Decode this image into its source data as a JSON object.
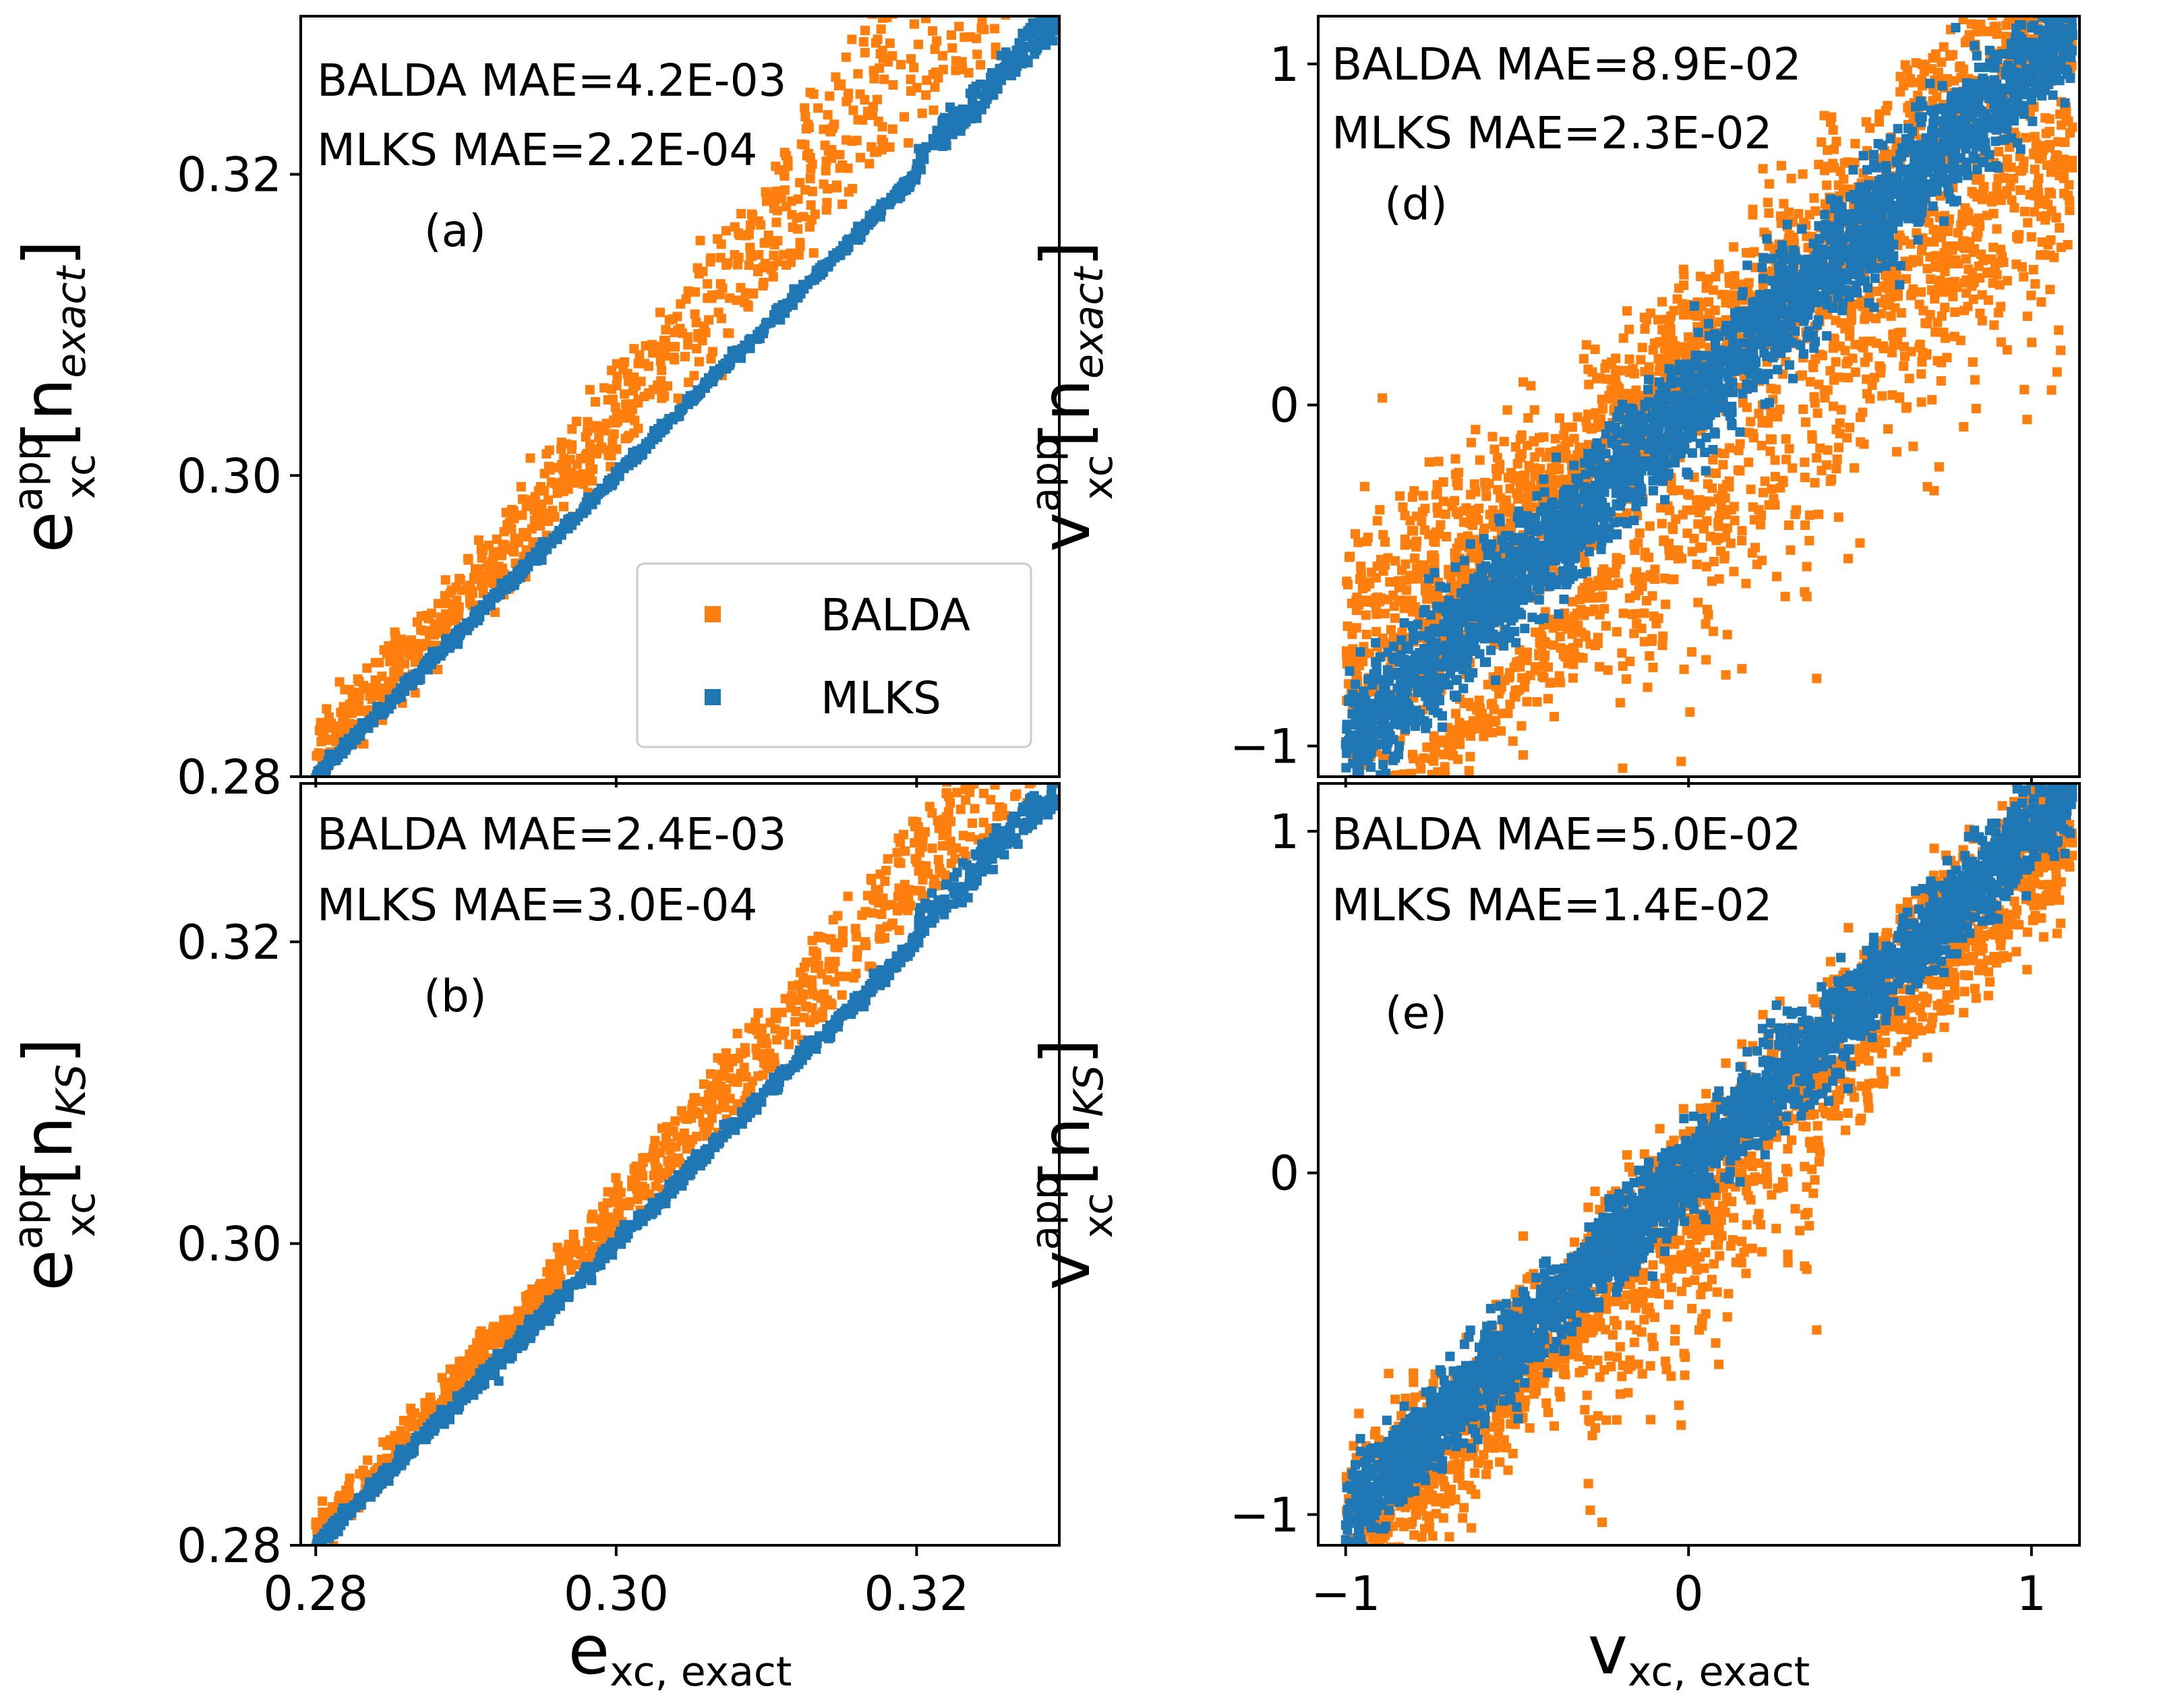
{
  "chart_data": [
    {
      "id": "a",
      "type": "scatter",
      "panel_label": "(a)",
      "xlim": [
        0.279,
        0.3295
      ],
      "ylim": [
        0.28,
        0.3305
      ],
      "x_ticks": [
        0.28,
        0.3,
        0.32
      ],
      "x_tick_labels": [
        "",
        "",
        ""
      ],
      "y_ticks": [
        0.28,
        0.3,
        0.32
      ],
      "y_tick_labels": [
        "0.28",
        "0.30",
        "0.32"
      ],
      "ylabel": {
        "main": "e",
        "sup": "app",
        "sub": "xc",
        "arg": "[n",
        "arg_sub": "exact",
        "close": "]"
      },
      "xlabel": null,
      "annotations": [
        "BALDA MAE=4.2E-03",
        "MLKS MAE=2.2E-04"
      ],
      "legend": {
        "location": "lower-right",
        "entries": [
          {
            "label": "BALDA",
            "color": "#ff7f0e"
          },
          {
            "label": "MLKS",
            "color": "#1f77b4"
          }
        ]
      },
      "series": [
        {
          "name": "BALDA",
          "color": "#ff7f0e",
          "kind": "balda-energy",
          "mae": 0.0042,
          "x_range": [
            0.28,
            0.3285
          ]
        },
        {
          "name": "MLKS",
          "color": "#1f77b4",
          "kind": "mlks-energy",
          "mae": 0.00022,
          "x_range": [
            0.28,
            0.3295
          ]
        }
      ]
    },
    {
      "id": "b",
      "type": "scatter",
      "panel_label": "(b)",
      "xlim": [
        0.279,
        0.3295
      ],
      "ylim": [
        0.28,
        0.3305
      ],
      "x_ticks": [
        0.28,
        0.3,
        0.32
      ],
      "x_tick_labels": [
        "0.28",
        "0.30",
        "0.32"
      ],
      "y_ticks": [
        0.28,
        0.3,
        0.32
      ],
      "y_tick_labels": [
        "0.28",
        "0.30",
        "0.32"
      ],
      "ylabel": {
        "main": "e",
        "sup": "app",
        "sub": "xc",
        "arg": "[n",
        "arg_sub": "KS",
        "close": "]"
      },
      "xlabel": {
        "main": "e",
        "sub": "xc, exact"
      },
      "annotations": [
        "BALDA MAE=2.4E-03",
        "MLKS MAE=3.0E-04"
      ],
      "series": [
        {
          "name": "BALDA",
          "color": "#ff7f0e",
          "kind": "balda-energy",
          "mae": 0.0024,
          "x_range": [
            0.28,
            0.3285
          ]
        },
        {
          "name": "MLKS",
          "color": "#1f77b4",
          "kind": "mlks-energy",
          "mae": 0.0003,
          "x_range": [
            0.28,
            0.3295
          ]
        }
      ]
    },
    {
      "id": "d",
      "type": "scatter",
      "panel_label": "(d)",
      "xlim": [
        -1.08,
        1.14
      ],
      "ylim": [
        -1.09,
        1.14
      ],
      "x_ticks": [
        -1,
        0,
        1
      ],
      "x_tick_labels": [
        "",
        "",
        ""
      ],
      "y_ticks": [
        -1,
        0,
        1
      ],
      "y_tick_labels": [
        "−1",
        "0",
        "1"
      ],
      "ylabel": {
        "main": "v",
        "sup": "app",
        "sub": "xc",
        "arg": "[n",
        "arg_sub": "exact",
        "close": "]"
      },
      "xlabel": null,
      "annotations": [
        "BALDA MAE=8.9E-02",
        "MLKS MAE=2.3E-02"
      ],
      "series": [
        {
          "name": "BALDA",
          "color": "#ff7f0e",
          "kind": "balda-potential",
          "mae": 0.089,
          "x_range": [
            -1.0,
            1.12
          ]
        },
        {
          "name": "MLKS",
          "color": "#1f77b4",
          "kind": "mlks-potential",
          "mae": 0.023,
          "x_range": [
            -1.0,
            1.12
          ]
        }
      ]
    },
    {
      "id": "e",
      "type": "scatter",
      "panel_label": "(e)",
      "xlim": [
        -1.08,
        1.14
      ],
      "ylim": [
        -1.09,
        1.14
      ],
      "x_ticks": [
        -1,
        0,
        1
      ],
      "x_tick_labels": [
        "−1",
        "0",
        "1"
      ],
      "y_ticks": [
        -1,
        0,
        1
      ],
      "y_tick_labels": [
        "−1",
        "0",
        "1"
      ],
      "ylabel": {
        "main": "v",
        "sup": "app",
        "sub": "xc",
        "arg": "[n",
        "arg_sub": "KS",
        "close": "]"
      },
      "xlabel": {
        "main": "v",
        "sub": "xc, exact"
      },
      "annotations": [
        "BALDA MAE=5.0E-02",
        "MLKS MAE=1.4E-02"
      ],
      "series": [
        {
          "name": "BALDA",
          "color": "#ff7f0e",
          "kind": "balda-potential",
          "mae": 0.05,
          "x_range": [
            -1.0,
            1.12
          ]
        },
        {
          "name": "MLKS",
          "color": "#1f77b4",
          "kind": "mlks-potential",
          "mae": 0.014,
          "x_range": [
            -1.0,
            1.12
          ]
        }
      ]
    }
  ]
}
